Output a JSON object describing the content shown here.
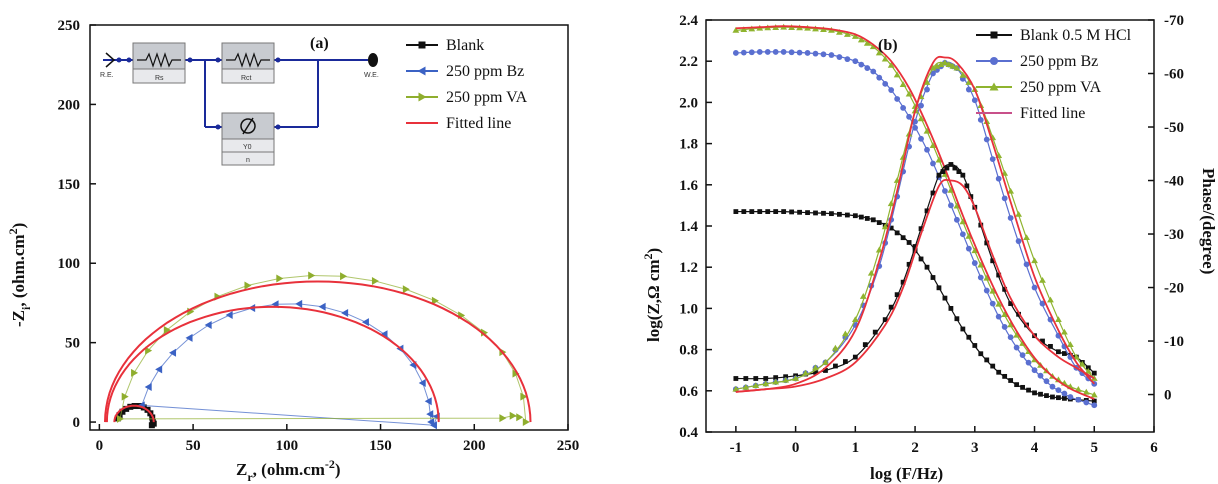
{
  "chart_data": [
    {
      "type": "scatter",
      "panel_label": "(a)",
      "xlabel": "Zr, (ohm.cm-2)",
      "xlabel_main": "Z",
      "xlabel_sub": "r",
      "xlabel_rest": ", (ohm.cm",
      "xlabel_sup": "-2",
      "xlabel_end": ")",
      "ylabel": "-Zi, (ohm.cm2)",
      "ylabel_main": "-Z",
      "ylabel_sub": "i",
      "ylabel_rest": ", (ohm.cm",
      "ylabel_sup": "2",
      "ylabel_end": ")",
      "xlim": [
        -5,
        250
      ],
      "ylim": [
        -5,
        250
      ],
      "xticks": [
        0,
        50,
        100,
        150,
        200,
        250
      ],
      "yticks": [
        0,
        50,
        100,
        150,
        200,
        250
      ],
      "grid": false,
      "legend_position": "top-right",
      "circuit": {
        "ref_label": "R.E.",
        "work_label": "W.E.",
        "r1_label": "Rs",
        "r2_label": "Rct",
        "cpe_label1": "Y0",
        "cpe_label2": "n"
      },
      "series": [
        {
          "name": "Blank",
          "color": "#111111",
          "marker": "square",
          "points": [
            [
              28.5,
              0.0
            ],
            [
              28.2,
              2.9
            ],
            [
              27.2,
              5.5
            ],
            [
              25.7,
              7.7
            ],
            [
              23.7,
              9.2
            ],
            [
              21.3,
              10.1
            ],
            [
              18.8,
              10.1
            ],
            [
              16.5,
              9.6
            ],
            [
              14.3,
              8.3
            ],
            [
              12.3,
              6.5
            ],
            [
              10.8,
              4.4
            ],
            [
              9.8,
              2.3
            ],
            [
              29.0,
              -1.0
            ],
            [
              28.0,
              -2.0
            ]
          ]
        },
        {
          "name": "250 ppm Bz",
          "color": "#3b62c4",
          "marker": "triangle-left",
          "points": [
            [
              177.0,
              0.0
            ],
            [
              175.7,
              13.1
            ],
            [
              172.5,
              24.6
            ],
            [
              167.5,
              35.9
            ],
            [
              160.6,
              46.2
            ],
            [
              152.1,
              55.3
            ],
            [
              142.2,
              62.9
            ],
            [
              131.1,
              68.7
            ],
            [
              119.1,
              72.6
            ],
            [
              106.6,
              74.4
            ],
            [
              94.0,
              74.2
            ],
            [
              81.5,
              71.8
            ],
            [
              69.5,
              67.4
            ],
            [
              58.3,
              61.1
            ],
            [
              48.1,
              53.0
            ],
            [
              39.3,
              43.6
            ],
            [
              31.9,
              33.2
            ],
            [
              26.3,
              22.1
            ],
            [
              22.6,
              10.5
            ],
            [
              178.5,
              -2.0
            ],
            [
              180.0,
              3.5
            ],
            [
              176.5,
              5.0
            ]
          ]
        },
        {
          "name": "250 ppm VA",
          "color": "#8fae2e",
          "marker": "triangle-right",
          "points": [
            [
              227.5,
              0.0
            ],
            [
              226.2,
              16.0
            ],
            [
              222.0,
              30.5
            ],
            [
              215.0,
              44.0
            ],
            [
              205.2,
              56.3
            ],
            [
              193.0,
              67.2
            ],
            [
              179.0,
              76.4
            ],
            [
              163.5,
              83.6
            ],
            [
              147.0,
              88.8
            ],
            [
              130.0,
              91.8
            ],
            [
              113.0,
              92.3
            ],
            [
              96.0,
              90.4
            ],
            [
              79.0,
              86.0
            ],
            [
              63.0,
              79.0
            ],
            [
              48.5,
              69.5
            ],
            [
              36.0,
              58.0
            ],
            [
              26.0,
              45.0
            ],
            [
              18.5,
              31.0
            ],
            [
              13.5,
              16.0
            ],
            [
              11.0,
              2.0
            ],
            [
              215.0,
              2.5
            ],
            [
              220.5,
              4.0
            ],
            [
              224.0,
              3.0
            ]
          ]
        },
        {
          "name": "Fitted line",
          "color": "#e8313b",
          "marker": "none",
          "points": [
            [
              229.5,
              0.0
            ],
            [
              228.4,
              11.9
            ],
            [
              225.1,
              23.6
            ],
            [
              219.6,
              34.9
            ],
            [
              212.0,
              45.5
            ],
            [
              202.5,
              55.3
            ],
            [
              191.2,
              64.1
            ],
            [
              178.4,
              71.8
            ],
            [
              164.2,
              78.1
            ],
            [
              149.0,
              83.1
            ],
            [
              132.9,
              86.5
            ],
            [
              116.4,
              88.3
            ],
            [
              99.6,
              88.5
            ],
            [
              82.9,
              86.9
            ],
            [
              66.7,
              83.7
            ],
            [
              51.2,
              78.9
            ],
            [
              36.7,
              72.6
            ],
            [
              23.5,
              64.8
            ],
            [
              11.9,
              55.8
            ],
            [
              2.0,
              45.7
            ],
            [
              0.0,
              0.0
            ]
          ]
        }
      ]
    },
    {
      "type": "line",
      "panel_label": "(b)",
      "xlabel": "log (F/Hz)",
      "ylabel": "log(Z,Ω cm2)",
      "ylabel_main": "log(Z,Ω cm",
      "ylabel_sup": "2",
      "ylabel_end": ")",
      "y2label": "Phase/(degree)",
      "xlim": [
        -1.5,
        6
      ],
      "ylim": [
        0.4,
        2.4
      ],
      "y2lim": [
        7,
        -70
      ],
      "xticks": [
        -1,
        0,
        1,
        2,
        3,
        4,
        5,
        6
      ],
      "yticks": [
        0.4,
        0.6,
        0.8,
        1.0,
        1.2,
        1.4,
        1.6,
        1.8,
        2.0,
        2.2,
        2.4
      ],
      "y2ticks": [
        0,
        -10,
        -20,
        -30,
        -40,
        -50,
        -60,
        -70
      ],
      "grid": false,
      "legend_position": "top-right",
      "series": [
        {
          "name": "Blank 0.5 M HCl",
          "color": "#111111",
          "marker": "square",
          "axis": "left",
          "x": [
            -1.0,
            -0.6,
            -0.2,
            0.2,
            0.6,
            1.0,
            1.3,
            1.6,
            1.9,
            2.2,
            2.5,
            2.8,
            3.1,
            3.4,
            3.7,
            4.0,
            4.3,
            4.6,
            5.0
          ],
          "y": [
            1.47,
            1.47,
            1.47,
            1.465,
            1.46,
            1.45,
            1.43,
            1.39,
            1.32,
            1.2,
            1.05,
            0.9,
            0.78,
            0.69,
            0.63,
            0.59,
            0.57,
            0.56,
            0.55
          ]
        },
        {
          "name": "250 ppm Bz",
          "color": "#5a6fd0",
          "marker": "circle",
          "axis": "left",
          "x": [
            -1.0,
            -0.6,
            -0.2,
            0.2,
            0.6,
            1.0,
            1.3,
            1.6,
            1.9,
            2.2,
            2.5,
            2.8,
            3.1,
            3.4,
            3.7,
            4.0,
            4.3,
            4.6,
            5.0
          ],
          "y": [
            2.24,
            2.245,
            2.245,
            2.24,
            2.23,
            2.2,
            2.15,
            2.06,
            1.93,
            1.77,
            1.57,
            1.36,
            1.15,
            0.96,
            0.81,
            0.7,
            0.62,
            0.57,
            0.53
          ]
        },
        {
          "name": "250 ppm VA",
          "color": "#8fb42f",
          "marker": "triangle",
          "axis": "left",
          "x": [
            -1.0,
            -0.6,
            -0.2,
            0.2,
            0.6,
            1.0,
            1.3,
            1.6,
            1.9,
            2.2,
            2.5,
            2.8,
            3.1,
            3.4,
            3.7,
            4.0,
            4.3,
            4.6,
            5.0
          ],
          "y": [
            2.35,
            2.36,
            2.365,
            2.36,
            2.35,
            2.32,
            2.27,
            2.18,
            2.04,
            1.86,
            1.65,
            1.42,
            1.21,
            1.02,
            0.87,
            0.75,
            0.67,
            0.62,
            0.58
          ]
        },
        {
          "name": "Fitted line",
          "color": "#e8313b",
          "marker": "none",
          "axis": "left",
          "x": [
            -1.0,
            -0.6,
            -0.2,
            0.2,
            0.6,
            1.0,
            1.3,
            1.6,
            1.9,
            2.2,
            2.5,
            2.8,
            3.1,
            3.4,
            3.7,
            4.0,
            4.3,
            4.6,
            5.0
          ],
          "y": [
            2.36,
            2.365,
            2.37,
            2.365,
            2.355,
            2.33,
            2.28,
            2.2,
            2.07,
            1.89,
            1.68,
            1.45,
            1.24,
            1.05,
            0.89,
            0.76,
            0.67,
            0.61,
            0.56
          ]
        },
        {
          "name": "Blank phase",
          "color": "#111111",
          "marker": "square",
          "axis": "right",
          "x": [
            -1.0,
            -0.5,
            0.0,
            0.5,
            1.0,
            1.5,
            1.8,
            2.1,
            2.4,
            2.6,
            2.8,
            3.0,
            3.3,
            3.6,
            4.0,
            4.4,
            4.7,
            5.0
          ],
          "y2": [
            -3,
            -3,
            -3.5,
            -4.5,
            -7,
            -14,
            -21,
            -31,
            -41,
            -43,
            -41,
            -35,
            -25,
            -17,
            -11,
            -8,
            -7,
            -4
          ]
        },
        {
          "name": "Bz phase",
          "color": "#5a6fd0",
          "marker": "circle",
          "axis": "right",
          "x": [
            -1.0,
            -0.5,
            0.0,
            0.5,
            1.0,
            1.4,
            1.7,
            2.0,
            2.3,
            2.5,
            2.7,
            3.0,
            3.3,
            3.6,
            4.0,
            4.4,
            4.7,
            5.0
          ],
          "y2": [
            -1,
            -2,
            -3,
            -6,
            -13,
            -24,
            -37,
            -51,
            -60,
            -62,
            -61,
            -55,
            -44,
            -33,
            -20,
            -11,
            -5,
            -2
          ]
        },
        {
          "name": "VA phase",
          "color": "#8fb42f",
          "marker": "triangle",
          "axis": "right",
          "x": [
            -1.0,
            -0.5,
            0.0,
            0.5,
            1.0,
            1.4,
            1.7,
            2.0,
            2.3,
            2.5,
            2.7,
            3.0,
            3.3,
            3.6,
            4.0,
            4.4,
            4.7,
            5.0
          ],
          "y2": [
            -1,
            -2,
            -3,
            -6,
            -14,
            -27,
            -40,
            -53,
            -61,
            -62,
            -61,
            -57,
            -48,
            -38,
            -25,
            -14,
            -7,
            -3
          ]
        },
        {
          "name": "Fitted phase 1",
          "color": "#e8313b",
          "marker": "none",
          "axis": "right",
          "x": [
            -1.0,
            -0.5,
            0.0,
            0.5,
            1.0,
            1.4,
            1.7,
            2.0,
            2.3,
            2.5,
            2.7,
            3.0,
            3.3,
            3.6,
            4.0,
            4.4,
            4.7,
            5.0
          ],
          "y2": [
            -0.5,
            -1,
            -2,
            -5,
            -12,
            -25,
            -38,
            -53,
            -62,
            -63,
            -62,
            -57,
            -47,
            -36,
            -22,
            -12,
            -6,
            -2
          ]
        },
        {
          "name": "Fitted phase 2",
          "color": "#e8313b",
          "marker": "none",
          "axis": "right",
          "x": [
            -1.0,
            -0.5,
            0.0,
            0.5,
            1.0,
            1.5,
            1.8,
            2.1,
            2.4,
            2.6,
            2.8,
            3.0,
            3.3,
            3.6,
            4.0,
            4.4,
            4.7,
            5.0
          ],
          "y2": [
            -0.5,
            -1,
            -1.5,
            -3,
            -6,
            -13,
            -20,
            -30,
            -39,
            -40,
            -39,
            -35,
            -26,
            -18,
            -11,
            -7,
            -5,
            -3
          ]
        }
      ],
      "legend": [
        {
          "name": "Blank 0.5 M HCl",
          "color": "#111111",
          "marker": "square"
        },
        {
          "name": "250 ppm Bz",
          "color": "#5a6fd0",
          "marker": "circle"
        },
        {
          "name": "250 ppm VA",
          "color": "#8fb42f",
          "marker": "triangle"
        },
        {
          "name": "Fitted line",
          "color": "#c8508a",
          "marker": "none"
        }
      ]
    }
  ]
}
